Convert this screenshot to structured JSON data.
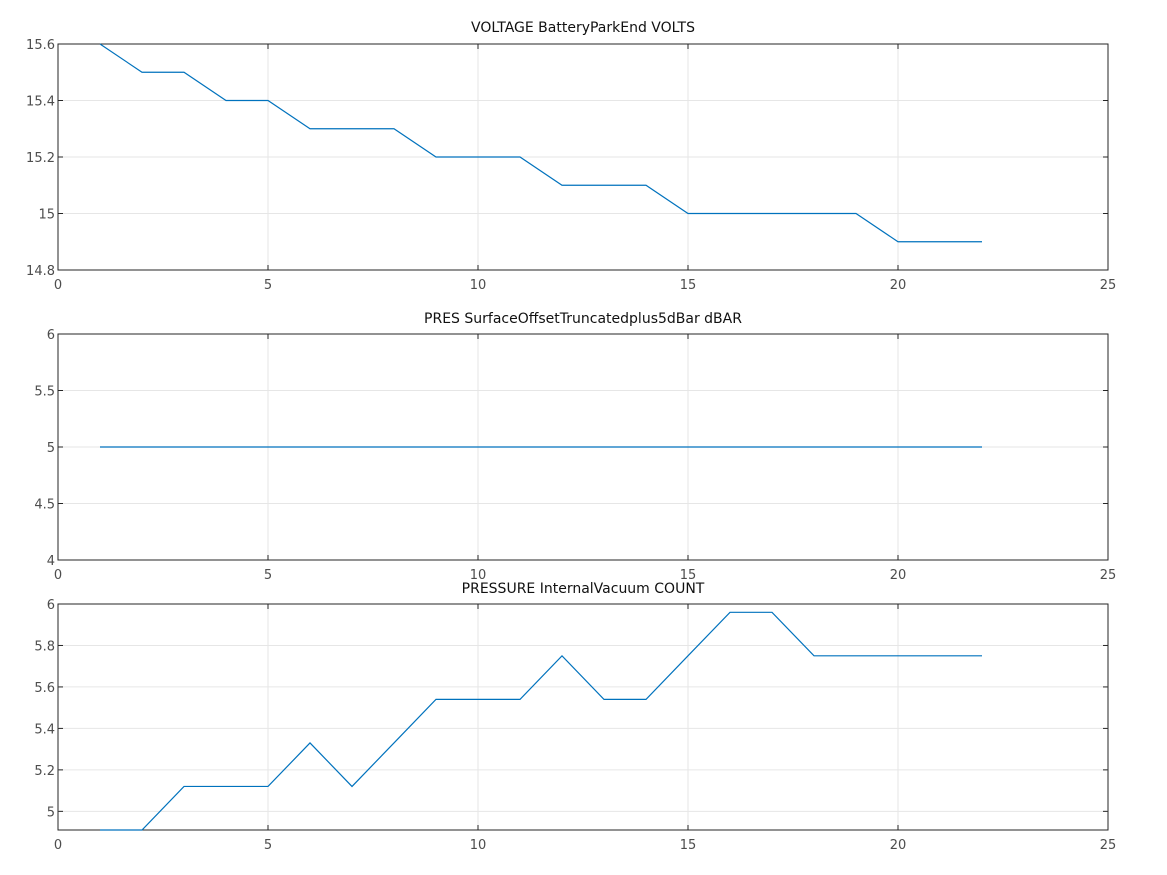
{
  "chart_data": [
    {
      "type": "line",
      "title": "VOLTAGE BatteryParkEnd VOLTS",
      "xlabel": "",
      "ylabel": "",
      "xlim": [
        0,
        25
      ],
      "ylim": [
        14.8,
        15.6
      ],
      "xticks": [
        0,
        5,
        10,
        15,
        20,
        25
      ],
      "yticks": [
        14.8,
        15,
        15.2,
        15.4,
        15.6
      ],
      "grid": true,
      "series": [
        {
          "color": "#0072bd",
          "x": [
            1,
            2,
            3,
            4,
            5,
            6,
            7,
            8,
            9,
            10,
            11,
            12,
            13,
            14,
            15,
            16,
            17,
            18,
            19,
            20,
            21,
            22
          ],
          "values": [
            15.6,
            15.5,
            15.5,
            15.4,
            15.4,
            15.3,
            15.3,
            15.3,
            15.2,
            15.2,
            15.2,
            15.1,
            15.1,
            15.1,
            15.0,
            15.0,
            15.0,
            15.0,
            15.0,
            14.9,
            14.9,
            14.9
          ]
        }
      ]
    },
    {
      "type": "line",
      "title": "PRES SurfaceOffsetTruncatedplus5dBar dBAR",
      "xlabel": "",
      "ylabel": "",
      "xlim": [
        0,
        25
      ],
      "ylim": [
        4,
        6
      ],
      "xticks": [
        0,
        5,
        10,
        15,
        20,
        25
      ],
      "yticks": [
        4,
        4.5,
        5,
        5.5,
        6
      ],
      "grid": true,
      "series": [
        {
          "color": "#0072bd",
          "x": [
            1,
            2,
            3,
            4,
            5,
            6,
            7,
            8,
            9,
            10,
            11,
            12,
            13,
            14,
            15,
            16,
            17,
            18,
            19,
            20,
            21,
            22
          ],
          "values": [
            5,
            5,
            5,
            5,
            5,
            5,
            5,
            5,
            5,
            5,
            5,
            5,
            5,
            5,
            5,
            5,
            5,
            5,
            5,
            5,
            5,
            5
          ]
        }
      ]
    },
    {
      "type": "line",
      "title": "PRESSURE InternalVacuum COUNT",
      "xlabel": "",
      "ylabel": "",
      "xlim": [
        0,
        25
      ],
      "ylim": [
        4.91,
        6
      ],
      "xticks": [
        0,
        5,
        10,
        15,
        20,
        25
      ],
      "yticks": [
        5,
        5.2,
        5.4,
        5.6,
        5.8,
        6
      ],
      "grid": true,
      "series": [
        {
          "color": "#0072bd",
          "x": [
            1,
            2,
            3,
            4,
            5,
            6,
            7,
            8,
            9,
            10,
            11,
            12,
            13,
            14,
            15,
            16,
            17,
            18,
            19,
            20,
            21,
            22
          ],
          "values": [
            4.91,
            4.91,
            5.12,
            5.12,
            5.12,
            5.33,
            5.12,
            5.33,
            5.54,
            5.54,
            5.54,
            5.75,
            5.54,
            5.54,
            5.75,
            5.96,
            5.96,
            5.75,
            5.75,
            5.75,
            5.75,
            5.75
          ]
        }
      ]
    }
  ]
}
